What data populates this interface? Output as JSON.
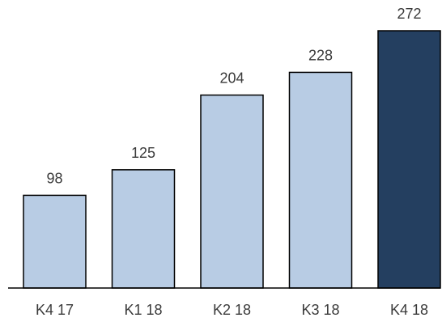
{
  "chart_data": {
    "type": "bar",
    "categories": [
      "K4 17",
      "K1 18",
      "K2 18",
      "K3 18",
      "K4 18"
    ],
    "values": [
      98,
      125,
      204,
      228,
      272
    ],
    "title": "",
    "xlabel": "",
    "ylabel": "",
    "ylim": [
      0,
      272
    ],
    "grid": false,
    "legend": "none",
    "colors": {
      "default_bar": "#b8cce4",
      "highlight_bar": "#243f60",
      "outline": "#000000",
      "text": "#3a3a3a"
    },
    "highlight_index": 4
  }
}
